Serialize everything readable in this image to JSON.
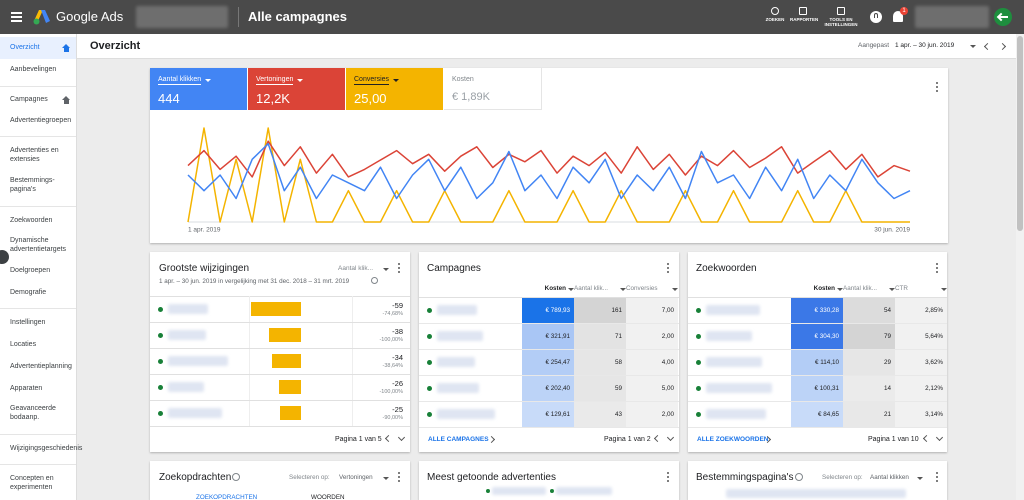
{
  "topbar": {
    "product": "Google Ads",
    "title": "Alle campagnes",
    "tools": [
      "ZOEKEN",
      "RAPPORTEN",
      "TOOLS EN INSTELLINGEN"
    ],
    "notifications": "1"
  },
  "sidebar": [
    "Overzicht",
    "Aanbevelingen",
    "Campagnes",
    "Advertentiegroepen",
    "Advertenties en extensies",
    "Bestemmings-pagina's",
    "Zoekwoorden",
    "Dynamische advertentietargets",
    "Doelgroepen",
    "Demografie",
    "Instellingen",
    "Locaties",
    "Advertentieplanning",
    "Apparaten",
    "Geavanceerde bodaanp.",
    "Wijzigingsgeschiedenis",
    "Concepten en experimenten"
  ],
  "header": {
    "title": "Overzicht",
    "range_label": "Aangepast",
    "range": "1 apr. – 30 jun. 2019"
  },
  "chart_data": {
    "type": "line",
    "categories": [
      "1 apr. 2019",
      null,
      null,
      null,
      null,
      null,
      null,
      null,
      null,
      null,
      null,
      null,
      null,
      null,
      null,
      null,
      null,
      null,
      null,
      null,
      null,
      null,
      null,
      null,
      null,
      null,
      null,
      null,
      null,
      null,
      null,
      null,
      null,
      null,
      null,
      null,
      null,
      null,
      null,
      null,
      null,
      null,
      null,
      null,
      null,
      "30 jun. 2019"
    ],
    "series": [
      {
        "name": "Aantal klikken",
        "total": "444",
        "color": "#4285f4",
        "ylim": [
          0,
          12
        ],
        "values": [
          6,
          4,
          6,
          3,
          8,
          10,
          4,
          7,
          3,
          6,
          5,
          4,
          7,
          3,
          6,
          8,
          4,
          7,
          3,
          5,
          9,
          4,
          6,
          3,
          7,
          5,
          8,
          3,
          6,
          4,
          7,
          3,
          9,
          5,
          6,
          3,
          7,
          4,
          8,
          3,
          6,
          4,
          8,
          5,
          3,
          4
        ]
      },
      {
        "name": "Vertoningen",
        "total": "12,2K",
        "color": "#db4437",
        "ylim": [
          0,
          250
        ],
        "values": [
          150,
          190,
          140,
          175,
          120,
          215,
          150,
          200,
          130,
          180,
          120,
          140,
          165,
          190,
          155,
          180,
          135,
          175,
          200,
          145,
          180,
          160,
          190,
          130,
          175,
          150,
          185,
          130,
          200,
          140,
          180,
          125,
          175,
          150,
          190,
          145,
          170,
          200,
          130,
          160,
          190,
          140,
          180,
          120,
          150,
          135
        ]
      },
      {
        "name": "Conversies",
        "total": "25,00",
        "color": "#f4b400",
        "ylim": [
          0,
          3
        ],
        "values": [
          0,
          3,
          0,
          2,
          0,
          3,
          0,
          2,
          0,
          0,
          1,
          0,
          0,
          1,
          0,
          0,
          1,
          0,
          0,
          0,
          1,
          0,
          0,
          0,
          1,
          0,
          0,
          1,
          0,
          0,
          0,
          1,
          0,
          0,
          1,
          0,
          0,
          0,
          1,
          0,
          0,
          1,
          0,
          0,
          0,
          0
        ]
      }
    ],
    "inactive_metric": {
      "name": "Kosten",
      "total": "€ 1,89K"
    }
  },
  "changes": {
    "title": "Grootste wijzigingen",
    "selector": "Aantal klik...",
    "subtitle": "1 apr. – 30 jun. 2019 in vergelijking met 31 dec. 2018 – 31 mrt. 2019",
    "color": "#f4b400",
    "rows": [
      {
        "value": -59,
        "change": "-74,68%"
      },
      {
        "value": -38,
        "change": "-100,00%"
      },
      {
        "value": -34,
        "change": "-38,64%"
      },
      {
        "value": -26,
        "change": "-100,00%"
      },
      {
        "value": -25,
        "change": "-90,00%"
      }
    ],
    "pager": "Pagina 1 van 5"
  },
  "campaigns": {
    "title": "Campagnes",
    "headers": [
      "Kosten",
      "Aantal klik...",
      "Conversies"
    ],
    "rows": [
      [
        "€ 789,93",
        "161",
        "7,00"
      ],
      [
        "€ 321,91",
        "71",
        "2,00"
      ],
      [
        "€ 254,47",
        "58",
        "4,00"
      ],
      [
        "€ 202,40",
        "59",
        "5,00"
      ],
      [
        "€ 129,61",
        "43",
        "2,00"
      ]
    ],
    "link": "ALLE CAMPAGNES",
    "pager": "Pagina 1 van 2"
  },
  "keywords": {
    "title": "Zoekwoorden",
    "headers": [
      "Kosten",
      "Aantal klik...",
      "CTR"
    ],
    "rows": [
      [
        "€ 330,28",
        "54",
        "2,85%"
      ],
      [
        "€ 304,30",
        "79",
        "5,64%"
      ],
      [
        "€ 114,10",
        "29",
        "3,62%"
      ],
      [
        "€ 100,31",
        "14",
        "2,12%"
      ],
      [
        "€ 84,65",
        "21",
        "3,14%"
      ]
    ],
    "link": "ALLE ZOEKWOORDEN",
    "pager": "Pagina 1 van 10"
  },
  "queries": {
    "title": "Zoekopdrachten",
    "select_label": "Selecteren op:",
    "selector": "Vertoningen",
    "tabs": [
      "ZOEKOPDRACHTEN",
      "WOORDEN"
    ]
  },
  "ads": {
    "title": "Meest getoonde advertenties"
  },
  "landing": {
    "title": "Bestemmingspagina's",
    "select_label": "Selecteren op:",
    "selector": "Aantal klikken"
  }
}
